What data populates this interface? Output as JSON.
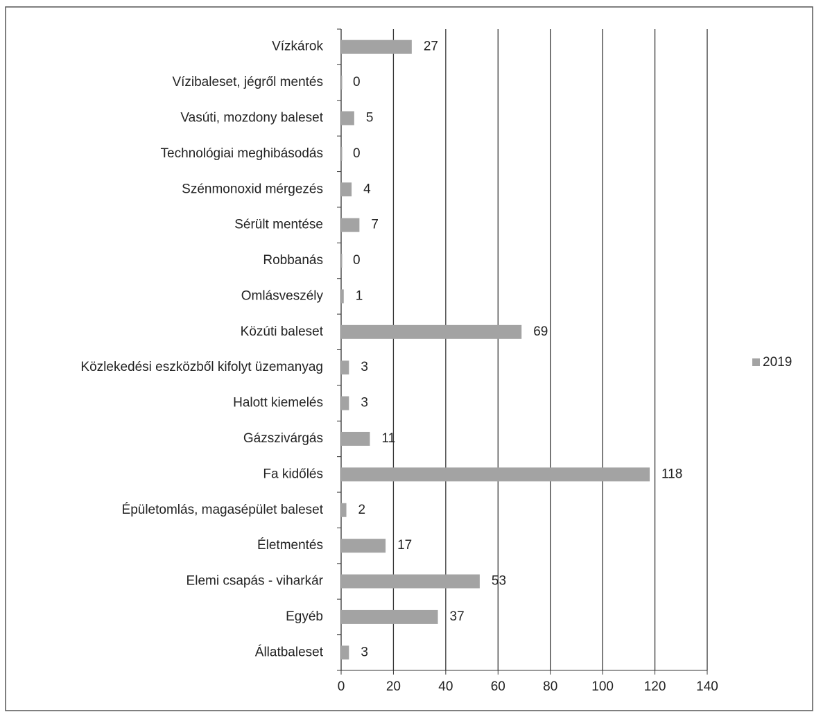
{
  "chart_data": {
    "type": "bar",
    "orientation": "horizontal",
    "categories": [
      "Vízkárok",
      "Vízibaleset, jégről mentés",
      "Vasúti, mozdony baleset",
      "Technológiai meghibásodás",
      "Szénmonoxid mérgezés",
      "Sérült mentése",
      "Robbanás",
      "Omlásveszély",
      "Közúti baleset",
      "Közlekedési eszközből kifolyt üzemanyag",
      "Halott kiemelés",
      "Gázszivárgás",
      "Fa kidőlés",
      "Épületomlás, magasépület baleset",
      "Életmentés",
      "Elemi csapás - viharkár",
      "Egyéb",
      "Állatbaleset"
    ],
    "series": [
      {
        "name": "2019",
        "color": "#a3a3a3",
        "values": [
          27,
          0,
          5,
          0,
          4,
          7,
          0,
          1,
          69,
          3,
          3,
          11,
          118,
          2,
          17,
          53,
          37,
          3
        ]
      }
    ],
    "xlim": [
      0,
      140
    ],
    "xticks": [
      0,
      20,
      40,
      60,
      80,
      100,
      120,
      140
    ],
    "grid": true,
    "legend": "right"
  }
}
